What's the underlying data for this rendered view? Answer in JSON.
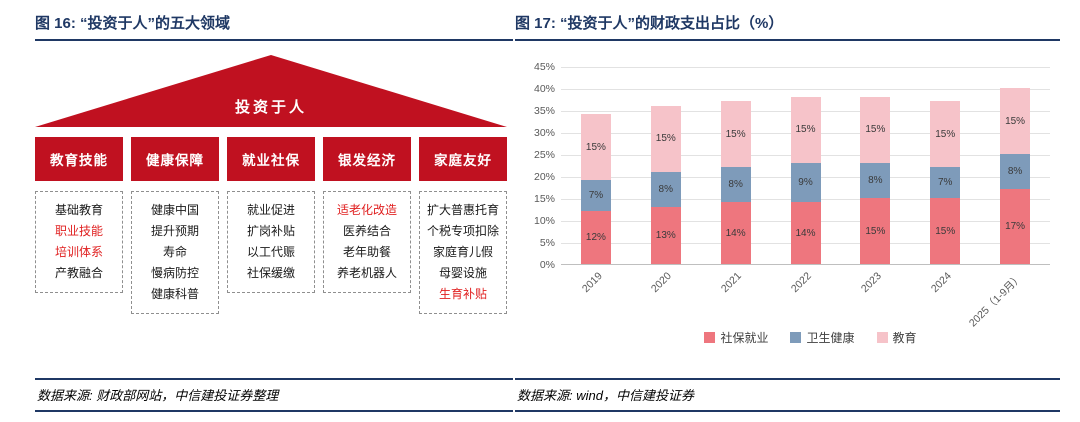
{
  "colors": {
    "navy": "#1f3864",
    "red": "#c01120",
    "highlight_text": "#e02020"
  },
  "left_panel": {
    "title": "图 16: “投资于人”的五大领域",
    "pyramid_label": "投资于人",
    "columns": [
      {
        "header": "教育技能",
        "items": [
          {
            "text": "基础教育",
            "highlight": false
          },
          {
            "text": "职业技能",
            "highlight": true
          },
          {
            "text": "培训体系",
            "highlight": true
          },
          {
            "text": "产教融合",
            "highlight": false
          }
        ]
      },
      {
        "header": "健康保障",
        "items": [
          {
            "text": "健康中国",
            "highlight": false
          },
          {
            "text": "提升预期",
            "highlight": false
          },
          {
            "text": "寿命",
            "highlight": false
          },
          {
            "text": "慢病防控",
            "highlight": false
          },
          {
            "text": "健康科普",
            "highlight": false
          }
        ]
      },
      {
        "header": "就业社保",
        "items": [
          {
            "text": "就业促进",
            "highlight": false
          },
          {
            "text": "扩岗补贴",
            "highlight": false
          },
          {
            "text": "以工代赈",
            "highlight": false
          },
          {
            "text": "社保缓缴",
            "highlight": false
          }
        ]
      },
      {
        "header": "银发经济",
        "items": [
          {
            "text": "适老化改造",
            "highlight": true
          },
          {
            "text": "医养结合",
            "highlight": false
          },
          {
            "text": "老年助餐",
            "highlight": false
          },
          {
            "text": "养老机器人",
            "highlight": false
          }
        ]
      },
      {
        "header": "家庭友好",
        "items": [
          {
            "text": "扩大普惠托育",
            "highlight": false
          },
          {
            "text": "个税专项扣除",
            "highlight": false
          },
          {
            "text": "家庭育儿假",
            "highlight": false
          },
          {
            "text": "母婴设施",
            "highlight": false
          },
          {
            "text": "生育补贴",
            "highlight": true
          }
        ]
      }
    ],
    "source": "数据来源: 财政部网站，中信建投证券整理"
  },
  "right_panel": {
    "title": "图 17: “投资于人”的财政支出占比（%）",
    "source": "数据来源: wind，中信建投证券"
  },
  "chart_data": {
    "type": "bar",
    "stacked": true,
    "title": "“投资于人”的财政支出占比（%）",
    "categories": [
      "2019",
      "2020",
      "2021",
      "2022",
      "2023",
      "2024",
      "2025（1-9月）"
    ],
    "series": [
      {
        "name": "社保就业",
        "color": "#ee767e",
        "values": [
          12,
          13,
          14,
          14,
          15,
          15,
          17
        ]
      },
      {
        "name": "卫生健康",
        "color": "#7e9bba",
        "values": [
          7,
          8,
          8,
          9,
          8,
          7,
          8
        ]
      },
      {
        "name": "教育",
        "color": "#f6c3c9",
        "values": [
          15,
          15,
          15,
          15,
          15,
          15,
          15
        ]
      }
    ],
    "ylim": [
      0,
      45
    ],
    "ytick_step": 5,
    "grid": true,
    "legend_position": "bottom"
  }
}
